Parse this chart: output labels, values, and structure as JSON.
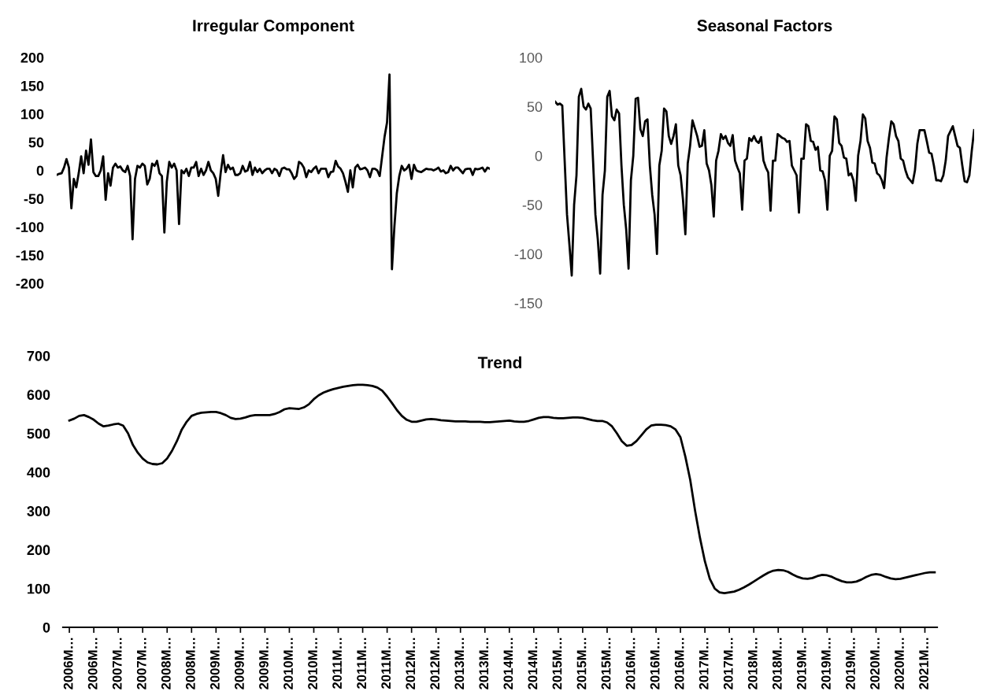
{
  "chart_data": [
    {
      "type": "line",
      "title": "Irregular Component",
      "categories": [
        null,
        null,
        null,
        null,
        null,
        null,
        null,
        null,
        null,
        null,
        null,
        null,
        null,
        null,
        null,
        null,
        null,
        null,
        null,
        null,
        null,
        null,
        null,
        null,
        null,
        null,
        null,
        null,
        null,
        null,
        null,
        null,
        null,
        null,
        null,
        null,
        null,
        null,
        null,
        null,
        null,
        null,
        null,
        null,
        null,
        null,
        null,
        null,
        null,
        null,
        null,
        null,
        null,
        null,
        null,
        null,
        null,
        null,
        null,
        null,
        null,
        null,
        null,
        null,
        null,
        null,
        null,
        null,
        null,
        null,
        null,
        null,
        null,
        null,
        null,
        null,
        null,
        null,
        null,
        null,
        null,
        null,
        null,
        null,
        null,
        null,
        null,
        null,
        null,
        null,
        null,
        null,
        null,
        null,
        null,
        null,
        null,
        null,
        null,
        null,
        null,
        null,
        null,
        null,
        null,
        null,
        null,
        null,
        null,
        null,
        null,
        null,
        null,
        null,
        null,
        null,
        null,
        null,
        null,
        null,
        null,
        null,
        null,
        null,
        null,
        null,
        null,
        null,
        null,
        null,
        null,
        null,
        null,
        null,
        null,
        null,
        null,
        null,
        null,
        null,
        null,
        null,
        null,
        null,
        null,
        null,
        null,
        null,
        null,
        null,
        null,
        null,
        null,
        null,
        null,
        null,
        null,
        null,
        null,
        null,
        null,
        null,
        null,
        null,
        null,
        null,
        null,
        null,
        null,
        null,
        null,
        null,
        null,
        null,
        null,
        null,
        null,
        null
      ],
      "series": [
        {
          "color": "#000000",
          "values": [
            -8,
            -6,
            -5,
            5,
            20,
            5,
            -67,
            -15,
            -30,
            -5,
            25,
            -5,
            35,
            10,
            55,
            -3,
            -10,
            -10,
            0,
            25,
            -52,
            -5,
            -27,
            5,
            12,
            5,
            7,
            0,
            -3,
            8,
            -10,
            -122,
            -15,
            8,
            5,
            12,
            8,
            -25,
            -15,
            12,
            8,
            17,
            -5,
            -10,
            -110,
            -20,
            15,
            5,
            12,
            0,
            -95,
            0,
            -5,
            3,
            -10,
            5,
            5,
            15,
            -10,
            3,
            -8,
            0,
            15,
            0,
            -5,
            -15,
            -45,
            -5,
            27,
            -3,
            10,
            2,
            5,
            -8,
            -8,
            -5,
            8,
            -2,
            0,
            15,
            -8,
            5,
            -3,
            3,
            -5,
            0,
            3,
            3,
            -5,
            3,
            0,
            -10,
            3,
            5,
            2,
            2,
            -5,
            -15,
            -10,
            15,
            12,
            5,
            -12,
            0,
            -3,
            3,
            7,
            -5,
            3,
            3,
            3,
            -12,
            -3,
            -2,
            17,
            7,
            3,
            -5,
            -20,
            -38,
            0,
            -30,
            5,
            10,
            2,
            3,
            5,
            0,
            -12,
            3,
            3,
            0,
            -10,
            25,
            60,
            85,
            170,
            -175,
            -100,
            -40,
            -10,
            8,
            0,
            3,
            10,
            -15,
            10,
            0,
            -2,
            -3,
            0,
            3,
            2,
            2,
            0,
            2,
            5,
            -2,
            0,
            -5,
            -3,
            8,
            0,
            5,
            5,
            0,
            -5,
            2,
            3,
            3,
            -8,
            3,
            2,
            3,
            5,
            -2,
            5,
            3
          ]
        }
      ],
      "ylim": [
        -200,
        200
      ],
      "yticks": [
        -200,
        -150,
        -100,
        -50,
        0,
        50,
        100,
        150,
        200
      ],
      "tick_labels": "y",
      "grid": false,
      "legend": false
    },
    {
      "type": "line",
      "title": "Seasonal Factors",
      "categories": [
        null,
        null,
        null,
        null,
        null,
        null,
        null,
        null,
        null,
        null,
        null,
        null,
        null,
        null,
        null,
        null,
        null,
        null,
        null,
        null,
        null,
        null,
        null,
        null,
        null,
        null,
        null,
        null,
        null,
        null,
        null,
        null,
        null,
        null,
        null,
        null,
        null,
        null,
        null,
        null,
        null,
        null,
        null,
        null,
        null,
        null,
        null,
        null,
        null,
        null,
        null,
        null,
        null,
        null,
        null,
        null,
        null,
        null,
        null,
        null,
        null,
        null,
        null,
        null,
        null,
        null,
        null,
        null,
        null,
        null,
        null,
        null,
        null,
        null,
        null,
        null,
        null,
        null,
        null,
        null,
        null,
        null,
        null,
        null,
        null,
        null,
        null,
        null,
        null,
        null,
        null,
        null,
        null,
        null,
        null,
        null,
        null,
        null,
        null,
        null,
        null,
        null,
        null,
        null,
        null,
        null,
        null,
        null,
        null,
        null,
        null,
        null,
        null,
        null,
        null,
        null,
        null,
        null,
        null,
        null,
        null,
        null,
        null,
        null,
        null,
        null,
        null,
        null,
        null,
        null,
        null,
        null,
        null,
        null,
        null,
        null,
        null,
        null,
        null,
        null,
        null,
        null,
        null,
        null,
        null,
        null,
        null,
        null,
        null,
        null,
        null,
        null,
        null,
        null,
        null,
        null,
        null,
        null,
        null,
        null,
        null,
        null,
        null,
        null,
        null,
        null,
        null,
        null,
        null,
        null,
        null,
        null,
        null,
        null,
        null,
        null,
        null,
        null
      ],
      "series": [
        {
          "color": "#000000",
          "values": [
            55,
            52,
            53,
            51,
            -5,
            -60,
            -90,
            -122,
            -50,
            -20,
            60,
            68,
            50,
            47,
            53,
            48,
            -5,
            -60,
            -85,
            -120,
            -40,
            -15,
            60,
            66,
            40,
            36,
            47,
            43,
            -10,
            -50,
            -75,
            -115,
            -25,
            0,
            58,
            59,
            27,
            20,
            35,
            37,
            -10,
            -40,
            -60,
            -100,
            -10,
            5,
            48,
            45,
            20,
            12,
            20,
            32,
            -10,
            -20,
            -45,
            -80,
            -8,
            10,
            36,
            28,
            20,
            9,
            10,
            26,
            -8,
            -15,
            -30,
            -62,
            -5,
            5,
            22,
            17,
            20,
            13,
            10,
            21,
            -5,
            -12,
            -18,
            -55,
            -5,
            -3,
            18,
            15,
            20,
            15,
            13,
            19,
            -5,
            -12,
            -17,
            -56,
            -5,
            -5,
            22,
            20,
            18,
            17,
            14,
            15,
            -10,
            -15,
            -20,
            -58,
            -3,
            -3,
            32,
            30,
            15,
            14,
            6,
            9,
            -15,
            -16,
            -25,
            -55,
            0,
            5,
            40,
            37,
            13,
            10,
            -2,
            -3,
            -20,
            -18,
            -25,
            -46,
            0,
            15,
            42,
            38,
            15,
            8,
            -7,
            -8,
            -18,
            -20,
            -25,
            -33,
            -2,
            18,
            35,
            32,
            20,
            15,
            -3,
            -5,
            -15,
            -22,
            -25,
            -28,
            -15,
            12,
            26,
            26,
            26,
            15,
            3,
            2,
            -10,
            -25,
            -25,
            -26,
            -20,
            -5,
            20,
            25,
            30,
            20,
            10,
            8,
            -10,
            -26,
            -27,
            -20,
            5,
            26
          ]
        }
      ],
      "ylim": [
        -150,
        100
      ],
      "yticks": [
        -150,
        -100,
        -50,
        0,
        50,
        100
      ],
      "tick_labels": "y",
      "grid": false,
      "legend": false
    },
    {
      "type": "line",
      "title": "Trend",
      "categories": [
        "2006M…",
        null,
        null,
        null,
        null,
        "2006M…",
        null,
        null,
        null,
        null,
        "2007M…",
        null,
        null,
        null,
        null,
        "2007M…",
        null,
        null,
        null,
        null,
        "2008M…",
        null,
        null,
        null,
        null,
        "2008M…",
        null,
        null,
        null,
        null,
        "2009M…",
        null,
        null,
        null,
        null,
        "2009M…",
        null,
        null,
        null,
        null,
        "2009M…",
        null,
        null,
        null,
        null,
        "2010M…",
        null,
        null,
        null,
        null,
        "2010M…",
        null,
        null,
        null,
        null,
        "2011M…",
        null,
        null,
        null,
        null,
        "2011M…",
        null,
        null,
        null,
        null,
        "2011M…",
        null,
        null,
        null,
        null,
        "2012M…",
        null,
        null,
        null,
        null,
        "2012M…",
        null,
        null,
        null,
        null,
        "2013M…",
        null,
        null,
        null,
        null,
        "2013M…",
        null,
        null,
        null,
        null,
        "2014M…",
        null,
        null,
        null,
        null,
        "2014M…",
        null,
        null,
        null,
        null,
        "2015M…",
        null,
        null,
        null,
        null,
        "2015M…",
        null,
        null,
        null,
        null,
        "2015M…",
        null,
        null,
        null,
        null,
        "2016M…",
        null,
        null,
        null,
        null,
        "2016M…",
        null,
        null,
        null,
        null,
        "2016M…",
        null,
        null,
        null,
        null,
        "2017M…",
        null,
        null,
        null,
        null,
        "2017M…",
        null,
        null,
        null,
        null,
        "2018M…",
        null,
        null,
        null,
        null,
        "2018M…",
        null,
        null,
        null,
        null,
        "2019M…",
        null,
        null,
        null,
        null,
        "2019M…",
        null,
        null,
        null,
        null,
        "2019M…",
        null,
        null,
        null,
        null,
        "2020M…",
        null,
        null,
        null,
        null,
        "2020M…",
        null,
        null,
        null,
        null,
        "2021M…",
        null,
        null
      ],
      "series": [
        {
          "color": "#000000",
          "values": [
            533,
            538,
            545,
            547,
            542,
            535,
            525,
            518,
            520,
            523,
            525,
            520,
            500,
            470,
            450,
            435,
            425,
            421,
            420,
            423,
            435,
            455,
            480,
            510,
            530,
            545,
            550,
            553,
            554,
            555,
            555,
            552,
            547,
            540,
            537,
            538,
            541,
            545,
            547,
            547,
            547,
            547,
            550,
            555,
            562,
            565,
            564,
            563,
            567,
            575,
            588,
            598,
            605,
            610,
            614,
            617,
            620,
            622,
            624,
            625,
            625,
            624,
            622,
            618,
            610,
            595,
            578,
            560,
            545,
            535,
            530,
            530,
            533,
            536,
            537,
            536,
            534,
            533,
            532,
            531,
            531,
            531,
            530,
            530,
            530,
            529,
            529,
            530,
            531,
            532,
            533,
            531,
            530,
            530,
            532,
            536,
            540,
            542,
            542,
            540,
            539,
            539,
            540,
            541,
            541,
            540,
            537,
            534,
            532,
            532,
            528,
            518,
            500,
            480,
            468,
            470,
            480,
            495,
            510,
            520,
            522,
            522,
            521,
            518,
            510,
            490,
            440,
            380,
            300,
            230,
            170,
            125,
            100,
            90,
            88,
            90,
            92,
            97,
            103,
            110,
            118,
            126,
            134,
            141,
            146,
            148,
            147,
            143,
            136,
            130,
            126,
            125,
            127,
            132,
            135,
            134,
            130,
            124,
            119,
            116,
            116,
            118,
            123,
            130,
            135,
            137,
            135,
            130,
            126,
            124,
            125,
            128,
            131,
            134,
            137,
            140,
            142,
            142
          ]
        }
      ],
      "ylim": [
        0,
        700
      ],
      "yticks": [
        0,
        100,
        200,
        300,
        400,
        500,
        600,
        700
      ],
      "grid": false,
      "legend": false
    }
  ]
}
